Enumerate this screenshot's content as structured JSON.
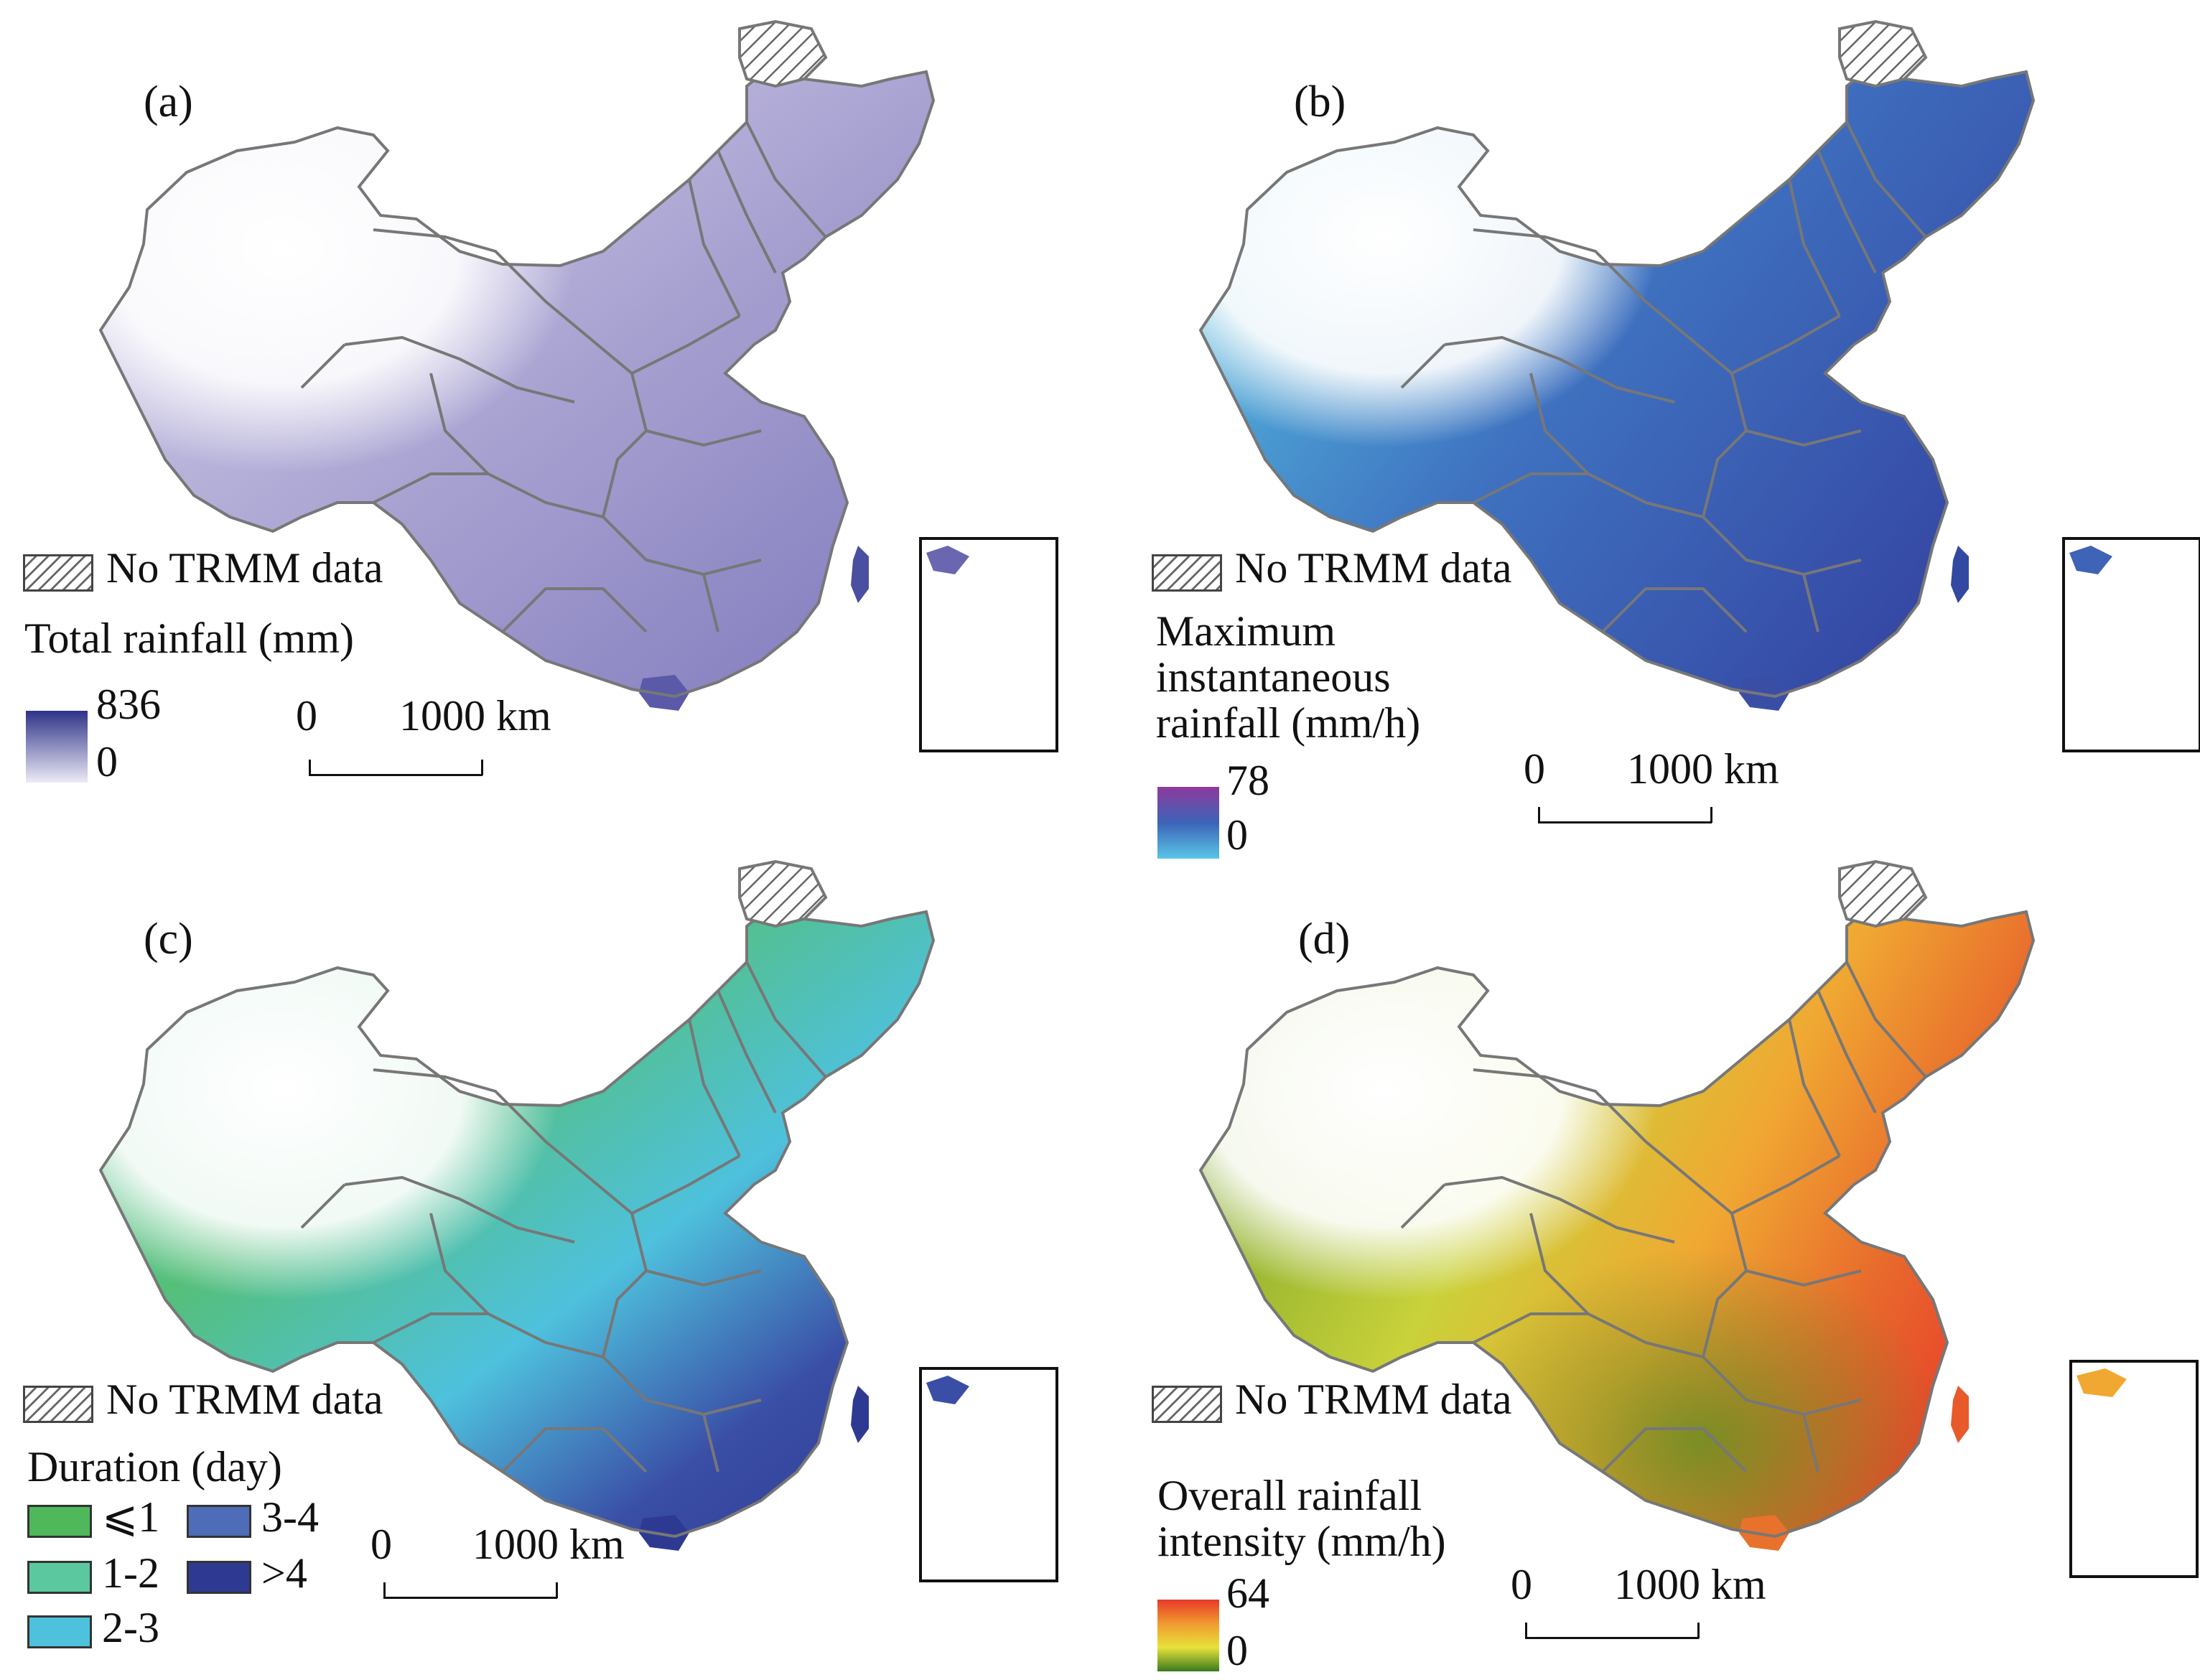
{
  "panels": [
    {
      "id": "a",
      "label": "(a)",
      "nodata_label": "No TRMM data",
      "title_lines": [
        "Total rainfall (mm)"
      ],
      "legend_type": "continuous",
      "max_label": "836",
      "min_label": "0",
      "colors": {
        "low": "#eceaf6",
        "mid": "#a9a3d2",
        "high": "#2f3388"
      },
      "scale": {
        "left": "0",
        "right": "1000 km"
      }
    },
    {
      "id": "b",
      "label": "(b)",
      "nodata_label": "No TRMM data",
      "title_lines": [
        "Maximum",
        "instantaneous",
        "rainfall (mm/h)"
      ],
      "legend_type": "continuous",
      "max_label": "78",
      "min_label": "0",
      "colors": {
        "low": "#5bc6e6",
        "mid": "#3c64b8",
        "high": "#8e3a9c"
      },
      "scale": {
        "left": "0",
        "right": "1000 km"
      }
    },
    {
      "id": "c",
      "label": "(c)",
      "nodata_label": "No TRMM data",
      "title_lines": [
        "Duration (day)"
      ],
      "legend_type": "classes",
      "classes": [
        {
          "label": "⩽1",
          "color": "#4fb85a"
        },
        {
          "label": "1-2",
          "color": "#5cc8a0"
        },
        {
          "label": "2-3",
          "color": "#4ec1dd"
        },
        {
          "label": "3-4",
          "color": "#4f6cb8"
        },
        {
          "label": ">4",
          "color": "#2e3a92"
        }
      ],
      "scale": {
        "left": "0",
        "right": "1000 km"
      }
    },
    {
      "id": "d",
      "label": "(d)",
      "nodata_label": "No TRMM data",
      "title_lines": [
        "Overall rainfall",
        "intensity (mm/h)"
      ],
      "legend_type": "continuous",
      "max_label": "64",
      "min_label": "0",
      "colors": {
        "low": "#3a7a1e",
        "mid": "#e8e23a",
        "high": "#e8392a"
      },
      "scale": {
        "left": "0",
        "right": "1000 km"
      }
    }
  ],
  "map_colors": {
    "border": "#777777",
    "nodata_hatch": "#666666",
    "inset_frame": "#111111"
  }
}
